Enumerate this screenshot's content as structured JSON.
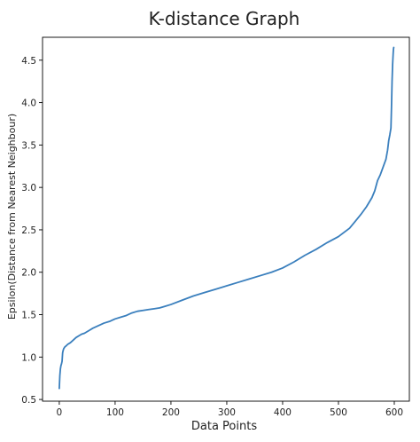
{
  "chart_data": {
    "type": "line",
    "title": "K-distance Graph",
    "xlabel": "Data Points",
    "ylabel": "Epsilon(Distance from Nearest Neighbour)",
    "xlim": [
      -30,
      627
    ],
    "ylim": [
      0.48,
      4.77
    ],
    "xticks": [
      0,
      100,
      200,
      300,
      400,
      500,
      600
    ],
    "xtick_labels": [
      "0",
      "100",
      "200",
      "300",
      "400",
      "500",
      "600"
    ],
    "yticks": [
      0.5,
      1.0,
      1.5,
      2.0,
      2.5,
      3.0,
      3.5,
      4.0,
      4.5
    ],
    "ytick_labels": [
      "0.5",
      "1.0",
      "1.5",
      "2.0",
      "2.5",
      "3.0",
      "3.5",
      "4.0",
      "4.5"
    ],
    "grid": false,
    "series": [
      {
        "color": "#3a7fbd",
        "x": [
          0,
          1,
          2,
          3,
          4,
          5,
          6,
          7,
          8,
          10,
          12,
          15,
          20,
          25,
          30,
          35,
          40,
          45,
          50,
          55,
          60,
          70,
          80,
          90,
          100,
          110,
          120,
          130,
          140,
          150,
          160,
          170,
          180,
          190,
          200,
          220,
          240,
          260,
          280,
          300,
          320,
          340,
          360,
          380,
          400,
          420,
          440,
          460,
          480,
          500,
          510,
          520,
          530,
          540,
          550,
          560,
          565,
          570,
          575,
          580,
          585,
          588,
          590,
          592,
          594,
          595,
          596,
          597,
          598,
          598.5,
          599
        ],
        "y": [
          0.63,
          0.78,
          0.86,
          0.9,
          0.92,
          0.95,
          1.05,
          1.08,
          1.1,
          1.12,
          1.13,
          1.15,
          1.17,
          1.2,
          1.23,
          1.25,
          1.27,
          1.28,
          1.3,
          1.32,
          1.34,
          1.37,
          1.4,
          1.42,
          1.45,
          1.47,
          1.49,
          1.52,
          1.54,
          1.55,
          1.56,
          1.57,
          1.58,
          1.6,
          1.62,
          1.67,
          1.72,
          1.76,
          1.8,
          1.84,
          1.88,
          1.92,
          1.96,
          2.0,
          2.05,
          2.12,
          2.2,
          2.27,
          2.35,
          2.42,
          2.47,
          2.52,
          2.6,
          2.68,
          2.77,
          2.88,
          2.96,
          3.08,
          3.15,
          3.24,
          3.33,
          3.44,
          3.55,
          3.62,
          3.7,
          3.95,
          4.25,
          4.45,
          4.58,
          4.63,
          4.65
        ]
      }
    ]
  }
}
